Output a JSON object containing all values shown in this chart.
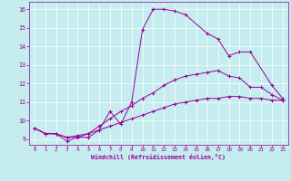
{
  "xlabel": "Windchill (Refroidissement éolien,°C)",
  "background_color": "#c5ecee",
  "line_color": "#990099",
  "grid_color": "#ffffff",
  "xlim": [
    -0.5,
    23.5
  ],
  "ylim": [
    8.7,
    16.4
  ],
  "xticks": [
    0,
    1,
    2,
    3,
    4,
    5,
    6,
    7,
    8,
    9,
    10,
    11,
    12,
    13,
    14,
    15,
    16,
    17,
    18,
    19,
    20,
    21,
    22,
    23
  ],
  "yticks": [
    9,
    10,
    11,
    12,
    13,
    14,
    15,
    16
  ],
  "line1_x": [
    0,
    1,
    2,
    3,
    4,
    5,
    6,
    7,
    8,
    9,
    10,
    11,
    12,
    13,
    14,
    16,
    17,
    18,
    19,
    20,
    22,
    23
  ],
  "line1_y": [
    9.6,
    9.3,
    9.3,
    8.9,
    9.1,
    9.1,
    9.5,
    10.5,
    9.8,
    11.0,
    14.9,
    16.0,
    16.0,
    15.9,
    15.7,
    14.7,
    14.4,
    13.5,
    13.7,
    13.7,
    11.9,
    11.2
  ],
  "line2_x": [
    0,
    1,
    2,
    3,
    4,
    5,
    6,
    7,
    8,
    9,
    10,
    11,
    12,
    13,
    14,
    15,
    16,
    17,
    18,
    19,
    20,
    21,
    22,
    23
  ],
  "line2_y": [
    9.6,
    9.3,
    9.3,
    9.1,
    9.1,
    9.3,
    9.7,
    10.1,
    10.5,
    10.8,
    11.2,
    11.5,
    11.9,
    12.2,
    12.4,
    12.5,
    12.6,
    12.7,
    12.4,
    12.3,
    11.8,
    11.8,
    11.4,
    11.1
  ],
  "line3_x": [
    0,
    1,
    2,
    3,
    4,
    5,
    6,
    7,
    8,
    9,
    10,
    11,
    12,
    13,
    14,
    15,
    16,
    17,
    18,
    19,
    20,
    21,
    22,
    23
  ],
  "line3_y": [
    9.6,
    9.3,
    9.3,
    9.1,
    9.2,
    9.3,
    9.5,
    9.7,
    9.9,
    10.1,
    10.3,
    10.5,
    10.7,
    10.9,
    11.0,
    11.1,
    11.2,
    11.2,
    11.3,
    11.3,
    11.2,
    11.2,
    11.1,
    11.1
  ]
}
